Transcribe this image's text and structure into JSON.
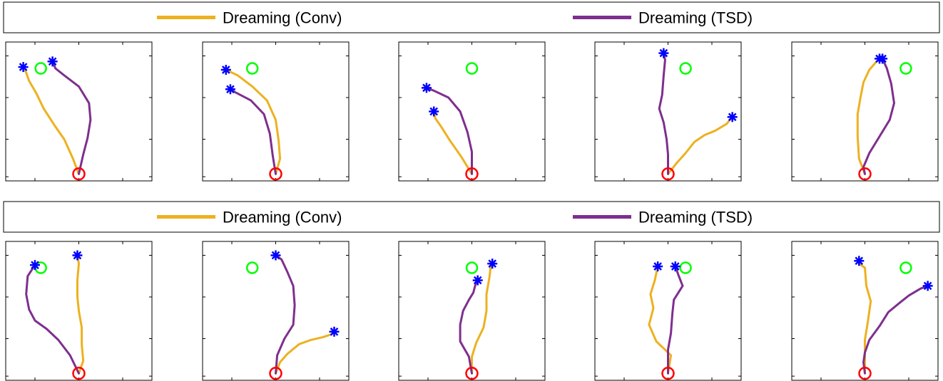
{
  "colors": {
    "conv": "#EDB120",
    "tsd": "#7E2F8E",
    "start": "#FF0000",
    "goal": "#00FF00",
    "endpoint": "#0000FF",
    "frame": "#000000"
  },
  "legends": [
    {
      "items": [
        {
          "label": "Dreaming (Conv)",
          "series": "conv"
        },
        {
          "label": "Dreaming (TSD)",
          "series": "tsd"
        }
      ]
    },
    {
      "items": [
        {
          "label": "Dreaming (Conv)",
          "series": "conv"
        },
        {
          "label": "Dreaming (TSD)",
          "series": "tsd"
        }
      ]
    }
  ],
  "chart_data": [
    {
      "type": "line",
      "xlim": [
        0,
        1
      ],
      "ylim": [
        0,
        1
      ],
      "grid": false,
      "start": [
        0.5,
        0.05
      ],
      "goal": [
        0.24,
        0.81
      ],
      "series": [
        {
          "key": "conv",
          "points": [
            [
              0.5,
              0.05
            ],
            [
              0.46,
              0.16
            ],
            [
              0.4,
              0.3
            ],
            [
              0.34,
              0.39
            ],
            [
              0.26,
              0.52
            ],
            [
              0.21,
              0.63
            ],
            [
              0.16,
              0.72
            ],
            [
              0.14,
              0.78
            ],
            [
              0.12,
              0.82
            ]
          ]
        },
        {
          "key": "tsd",
          "points": [
            [
              0.5,
              0.05
            ],
            [
              0.53,
              0.19
            ],
            [
              0.56,
              0.31
            ],
            [
              0.58,
              0.44
            ],
            [
              0.57,
              0.56
            ],
            [
              0.5,
              0.68
            ],
            [
              0.4,
              0.76
            ],
            [
              0.34,
              0.81
            ],
            [
              0.32,
              0.86
            ]
          ]
        }
      ]
    },
    {
      "type": "line",
      "xlim": [
        0,
        1
      ],
      "ylim": [
        0,
        1
      ],
      "grid": false,
      "start": [
        0.5,
        0.05
      ],
      "goal": [
        0.34,
        0.81
      ],
      "series": [
        {
          "key": "conv",
          "points": [
            [
              0.5,
              0.05
            ],
            [
              0.53,
              0.16
            ],
            [
              0.52,
              0.29
            ],
            [
              0.5,
              0.44
            ],
            [
              0.44,
              0.58
            ],
            [
              0.34,
              0.68
            ],
            [
              0.24,
              0.76
            ],
            [
              0.16,
              0.8
            ]
          ]
        },
        {
          "key": "tsd",
          "points": [
            [
              0.5,
              0.05
            ],
            [
              0.48,
              0.18
            ],
            [
              0.46,
              0.34
            ],
            [
              0.42,
              0.48
            ],
            [
              0.33,
              0.58
            ],
            [
              0.22,
              0.64
            ],
            [
              0.19,
              0.66
            ]
          ]
        }
      ]
    },
    {
      "type": "line",
      "xlim": [
        0,
        1
      ],
      "ylim": [
        0,
        1
      ],
      "grid": false,
      "start": [
        0.5,
        0.05
      ],
      "goal": [
        0.5,
        0.81
      ],
      "series": [
        {
          "key": "conv",
          "points": [
            [
              0.5,
              0.05
            ],
            [
              0.43,
              0.17
            ],
            [
              0.35,
              0.29
            ],
            [
              0.29,
              0.39
            ],
            [
              0.25,
              0.45
            ],
            [
              0.24,
              0.5
            ]
          ]
        },
        {
          "key": "tsd",
          "points": [
            [
              0.5,
              0.05
            ],
            [
              0.5,
              0.21
            ],
            [
              0.47,
              0.35
            ],
            [
              0.42,
              0.5
            ],
            [
              0.34,
              0.6
            ],
            [
              0.24,
              0.65
            ],
            [
              0.19,
              0.67
            ]
          ]
        }
      ]
    },
    {
      "type": "line",
      "xlim": [
        0,
        1
      ],
      "ylim": [
        0,
        1
      ],
      "grid": false,
      "start": [
        0.5,
        0.05
      ],
      "goal": [
        0.62,
        0.81
      ],
      "series": [
        {
          "key": "conv",
          "points": [
            [
              0.5,
              0.05
            ],
            [
              0.56,
              0.13
            ],
            [
              0.62,
              0.2
            ],
            [
              0.68,
              0.28
            ],
            [
              0.75,
              0.33
            ],
            [
              0.82,
              0.36
            ],
            [
              0.9,
              0.41
            ],
            [
              0.94,
              0.46
            ]
          ]
        },
        {
          "key": "tsd",
          "points": [
            [
              0.5,
              0.05
            ],
            [
              0.5,
              0.19
            ],
            [
              0.49,
              0.3
            ],
            [
              0.47,
              0.42
            ],
            [
              0.44,
              0.52
            ],
            [
              0.46,
              0.62
            ],
            [
              0.47,
              0.76
            ],
            [
              0.48,
              0.87
            ],
            [
              0.47,
              0.92
            ]
          ]
        }
      ]
    },
    {
      "type": "line",
      "xlim": [
        0,
        1
      ],
      "ylim": [
        0,
        1
      ],
      "grid": false,
      "start": [
        0.5,
        0.05
      ],
      "goal": [
        0.78,
        0.81
      ],
      "series": [
        {
          "key": "conv",
          "points": [
            [
              0.5,
              0.05
            ],
            [
              0.46,
              0.16
            ],
            [
              0.45,
              0.32
            ],
            [
              0.45,
              0.48
            ],
            [
              0.47,
              0.6
            ],
            [
              0.49,
              0.71
            ],
            [
              0.53,
              0.8
            ],
            [
              0.58,
              0.86
            ],
            [
              0.6,
              0.88
            ]
          ]
        },
        {
          "key": "tsd",
          "points": [
            [
              0.5,
              0.05
            ],
            [
              0.49,
              0.1
            ],
            [
              0.53,
              0.2
            ],
            [
              0.6,
              0.32
            ],
            [
              0.67,
              0.44
            ],
            [
              0.7,
              0.56
            ],
            [
              0.68,
              0.7
            ],
            [
              0.65,
              0.81
            ],
            [
              0.62,
              0.88
            ]
          ]
        }
      ]
    },
    {
      "type": "line",
      "xlim": [
        0,
        1
      ],
      "ylim": [
        0,
        1
      ],
      "grid": false,
      "start": [
        0.5,
        0.05
      ],
      "goal": [
        0.24,
        0.81
      ],
      "series": [
        {
          "key": "conv",
          "points": [
            [
              0.5,
              0.05
            ],
            [
              0.53,
              0.14
            ],
            [
              0.52,
              0.26
            ],
            [
              0.52,
              0.38
            ],
            [
              0.5,
              0.5
            ],
            [
              0.49,
              0.6
            ],
            [
              0.49,
              0.72
            ],
            [
              0.5,
              0.84
            ],
            [
              0.49,
              0.9
            ]
          ]
        },
        {
          "key": "tsd",
          "points": [
            [
              0.5,
              0.05
            ],
            [
              0.44,
              0.18
            ],
            [
              0.36,
              0.29
            ],
            [
              0.28,
              0.37
            ],
            [
              0.2,
              0.43
            ],
            [
              0.16,
              0.51
            ],
            [
              0.14,
              0.62
            ],
            [
              0.15,
              0.75
            ],
            [
              0.2,
              0.83
            ]
          ]
        }
      ]
    },
    {
      "type": "line",
      "xlim": [
        0,
        1
      ],
      "ylim": [
        0,
        1
      ],
      "grid": false,
      "start": [
        0.5,
        0.05
      ],
      "goal": [
        0.34,
        0.81
      ],
      "series": [
        {
          "key": "conv",
          "points": [
            [
              0.5,
              0.05
            ],
            [
              0.53,
              0.13
            ],
            [
              0.58,
              0.19
            ],
            [
              0.66,
              0.26
            ],
            [
              0.74,
              0.29
            ],
            [
              0.82,
              0.31
            ],
            [
              0.88,
              0.33
            ],
            [
              0.9,
              0.35
            ]
          ]
        },
        {
          "key": "tsd",
          "points": [
            [
              0.5,
              0.05
            ],
            [
              0.51,
              0.18
            ],
            [
              0.56,
              0.3
            ],
            [
              0.62,
              0.4
            ],
            [
              0.63,
              0.54
            ],
            [
              0.62,
              0.68
            ],
            [
              0.58,
              0.78
            ],
            [
              0.54,
              0.87
            ],
            [
              0.5,
              0.9
            ]
          ]
        }
      ]
    },
    {
      "type": "line",
      "xlim": [
        0,
        1
      ],
      "ylim": [
        0,
        1
      ],
      "grid": false,
      "start": [
        0.5,
        0.05
      ],
      "goal": [
        0.5,
        0.81
      ],
      "series": [
        {
          "key": "conv",
          "points": [
            [
              0.5,
              0.05
            ],
            [
              0.5,
              0.17
            ],
            [
              0.53,
              0.27
            ],
            [
              0.58,
              0.38
            ],
            [
              0.6,
              0.5
            ],
            [
              0.6,
              0.62
            ],
            [
              0.62,
              0.74
            ],
            [
              0.63,
              0.83
            ],
            [
              0.64,
              0.84
            ]
          ]
        },
        {
          "key": "tsd",
          "points": [
            [
              0.5,
              0.05
            ],
            [
              0.48,
              0.17
            ],
            [
              0.42,
              0.28
            ],
            [
              0.42,
              0.4
            ],
            [
              0.44,
              0.5
            ],
            [
              0.48,
              0.58
            ],
            [
              0.51,
              0.63
            ],
            [
              0.53,
              0.71
            ],
            [
              0.54,
              0.72
            ]
          ]
        }
      ]
    },
    {
      "type": "line",
      "xlim": [
        0,
        1
      ],
      "ylim": [
        0,
        1
      ],
      "grid": false,
      "start": [
        0.5,
        0.05
      ],
      "goal": [
        0.62,
        0.81
      ],
      "series": [
        {
          "key": "conv",
          "points": [
            [
              0.5,
              0.05
            ],
            [
              0.52,
              0.18
            ],
            [
              0.42,
              0.28
            ],
            [
              0.37,
              0.4
            ],
            [
              0.4,
              0.52
            ],
            [
              0.38,
              0.62
            ],
            [
              0.41,
              0.72
            ],
            [
              0.43,
              0.82
            ]
          ]
        },
        {
          "key": "tsd",
          "points": [
            [
              0.5,
              0.05
            ],
            [
              0.5,
              0.22
            ],
            [
              0.52,
              0.34
            ],
            [
              0.53,
              0.48
            ],
            [
              0.54,
              0.58
            ],
            [
              0.6,
              0.68
            ],
            [
              0.57,
              0.76
            ],
            [
              0.55,
              0.82
            ]
          ]
        }
      ]
    },
    {
      "type": "line",
      "xlim": [
        0,
        1
      ],
      "ylim": [
        0,
        1
      ],
      "grid": false,
      "start": [
        0.5,
        0.05
      ],
      "goal": [
        0.78,
        0.81
      ],
      "series": [
        {
          "key": "conv",
          "points": [
            [
              0.5,
              0.05
            ],
            [
              0.5,
              0.16
            ],
            [
              0.5,
              0.29
            ],
            [
              0.52,
              0.42
            ],
            [
              0.54,
              0.57
            ],
            [
              0.51,
              0.68
            ],
            [
              0.5,
              0.81
            ],
            [
              0.46,
              0.84
            ],
            [
              0.46,
              0.86
            ]
          ]
        },
        {
          "key": "tsd",
          "points": [
            [
              0.5,
              0.05
            ],
            [
              0.49,
              0.13
            ],
            [
              0.5,
              0.2
            ],
            [
              0.53,
              0.29
            ],
            [
              0.6,
              0.39
            ],
            [
              0.66,
              0.49
            ],
            [
              0.74,
              0.56
            ],
            [
              0.8,
              0.61
            ],
            [
              0.88,
              0.66
            ],
            [
              0.93,
              0.68
            ]
          ]
        }
      ]
    }
  ]
}
